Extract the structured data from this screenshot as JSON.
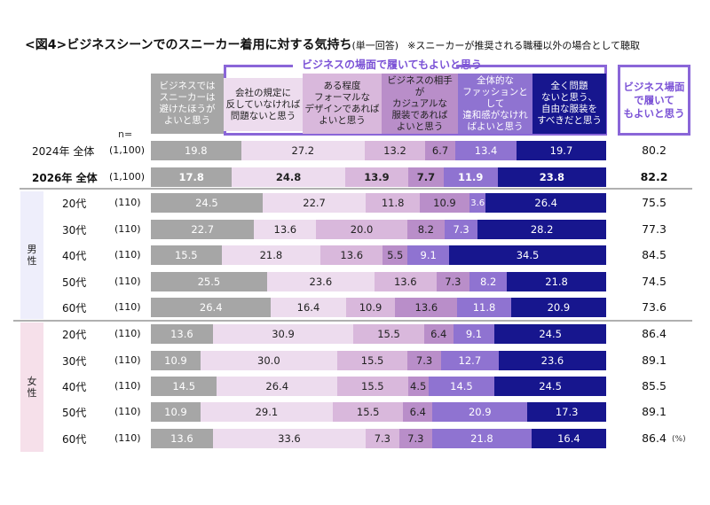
{
  "title": {
    "main": "<図4>ビジネスシーンでのスニーカー着用に対する気持ち",
    "sub": "(単一回答)",
    "note": "※スニーカーが推奨される職種以外の場合として聴取"
  },
  "group_title": "ビジネスの場面で履いてもよいと思う",
  "total_header": "ビジネス場面で履いてもよいと思う",
  "n_label": "n=",
  "unit_label": "(%)",
  "genders": {
    "male": "男性",
    "female": "女性"
  },
  "colors": {
    "series": [
      "#a6a6a6",
      "#eddcee",
      "#d9b8dc",
      "#b98ec9",
      "#8f73d1",
      "#17168e"
    ],
    "text": [
      "#ffffff",
      "#222222",
      "#222222",
      "#222222",
      "#ffffff",
      "#ffffff"
    ],
    "accent": "#8a66d8"
  },
  "chart_data": {
    "type": "bar",
    "orientation": "horizontal-stacked-100",
    "title": "<図4>ビジネスシーンでのスニーカー着用に対する気持ち",
    "xlabel": "",
    "ylabel": "",
    "xlim": [
      0,
      100
    ],
    "unit": "%",
    "series_names": [
      "ビジネスではスニーカーは避けたほうがよいと思う",
      "会社の規定に反していなければ問題ないと思う",
      "ある程度フォーマルなデザインであればよいと思う",
      "ビジネスの相手がカジュアルな服装であればよいと思う",
      "全体的なファッションとして違和感がなければよいと思う",
      "全く問題ないと思う、自由な服装をすべきだと思う"
    ],
    "series_header_lines": [
      [
        "ビジネスでは",
        "スニーカーは",
        "避けたほうが",
        "よいと思う"
      ],
      [
        "会社の規定に",
        "反していなければ",
        "問題ないと思う"
      ],
      [
        "ある程度",
        "フォーマルな",
        "デザインであれば",
        "よいと思う"
      ],
      [
        "ビジネスの相手が",
        "カジュアルな",
        "服装であれば",
        "よいと思う"
      ],
      [
        "全体的な",
        "ファッションとして",
        "違和感がなけれ",
        "ばよいと思う"
      ],
      [
        "全く問題",
        "ないと思う、",
        "自由な服装を",
        "すべきだと思う"
      ]
    ],
    "total_label": "ビジネス場面で履いてもよいと思う",
    "rows": [
      {
        "label": "2024年 全体",
        "n": "(1,100)",
        "group": "overall",
        "bold": false,
        "values": [
          19.8,
          27.2,
          13.2,
          6.7,
          13.4,
          19.7
        ],
        "total": 80.2
      },
      {
        "label": "2026年 全体",
        "n": "(1,100)",
        "group": "overall",
        "bold": true,
        "values": [
          17.8,
          24.8,
          13.9,
          7.7,
          11.9,
          23.8
        ],
        "total": 82.2
      },
      {
        "label": "20代",
        "n": "(110)",
        "group": "male",
        "bold": false,
        "values": [
          24.5,
          22.7,
          11.8,
          10.9,
          3.6,
          26.4
        ],
        "total": 75.5
      },
      {
        "label": "30代",
        "n": "(110)",
        "group": "male",
        "bold": false,
        "values": [
          22.7,
          13.6,
          20.0,
          8.2,
          7.3,
          28.2
        ],
        "total": 77.3
      },
      {
        "label": "40代",
        "n": "(110)",
        "group": "male",
        "bold": false,
        "values": [
          15.5,
          21.8,
          13.6,
          5.5,
          9.1,
          34.5
        ],
        "total": 84.5
      },
      {
        "label": "50代",
        "n": "(110)",
        "group": "male",
        "bold": false,
        "values": [
          25.5,
          23.6,
          13.6,
          7.3,
          8.2,
          21.8
        ],
        "total": 74.5
      },
      {
        "label": "60代",
        "n": "(110)",
        "group": "male",
        "bold": false,
        "values": [
          26.4,
          16.4,
          10.9,
          13.6,
          11.8,
          20.9
        ],
        "total": 73.6
      },
      {
        "label": "20代",
        "n": "(110)",
        "group": "female",
        "bold": false,
        "values": [
          13.6,
          30.9,
          15.5,
          6.4,
          9.1,
          24.5
        ],
        "total": 86.4
      },
      {
        "label": "30代",
        "n": "(110)",
        "group": "female",
        "bold": false,
        "values": [
          10.9,
          30.0,
          15.5,
          7.3,
          12.7,
          23.6
        ],
        "total": 89.1
      },
      {
        "label": "40代",
        "n": "(110)",
        "group": "female",
        "bold": false,
        "values": [
          14.5,
          26.4,
          15.5,
          4.5,
          14.5,
          24.5
        ],
        "total": 85.5
      },
      {
        "label": "50代",
        "n": "(110)",
        "group": "female",
        "bold": false,
        "values": [
          10.9,
          29.1,
          15.5,
          6.4,
          20.9,
          17.3
        ],
        "total": 89.1
      },
      {
        "label": "60代",
        "n": "(110)",
        "group": "female",
        "bold": false,
        "values": [
          13.6,
          33.6,
          7.3,
          7.3,
          21.8,
          16.4
        ],
        "total": 86.4
      }
    ]
  }
}
